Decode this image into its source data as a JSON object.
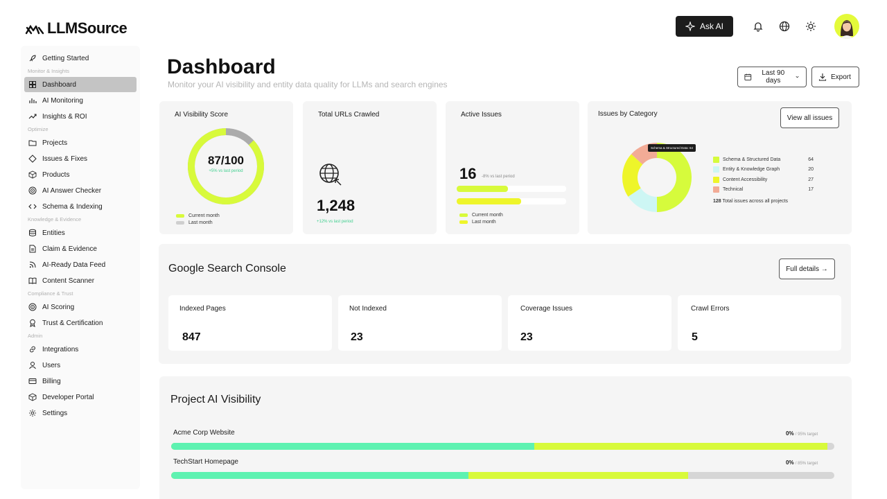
{
  "brand": {
    "name": "LLMSource"
  },
  "topbar": {
    "ask_ai_label": "Ask AI"
  },
  "sidebar": {
    "items": [
      {
        "type": "item",
        "label": "Getting Started",
        "icon": "rocket-icon"
      },
      {
        "type": "section",
        "label": "Monitor & Insights"
      },
      {
        "type": "item",
        "label": "Dashboard",
        "icon": "dashboard-icon",
        "active": true
      },
      {
        "type": "item",
        "label": "AI Monitoring",
        "icon": "bar-chart-icon"
      },
      {
        "type": "item",
        "label": "Insights & ROI",
        "icon": "trend-icon"
      },
      {
        "type": "section",
        "label": "Optimize"
      },
      {
        "type": "item",
        "label": "Projects",
        "icon": "folder-icon"
      },
      {
        "type": "item",
        "label": "Issues & Fixes",
        "icon": "diamond-icon"
      },
      {
        "type": "item",
        "label": "Products",
        "icon": "box-icon"
      },
      {
        "type": "item",
        "label": "AI Answer Checker",
        "icon": "target-icon"
      },
      {
        "type": "item",
        "label": "Schema & Indexing",
        "icon": "code-icon"
      },
      {
        "type": "section",
        "label": "Knowledge & Evidence"
      },
      {
        "type": "item",
        "label": "Entities",
        "icon": "database-icon"
      },
      {
        "type": "item",
        "label": "Claim & Evidence",
        "icon": "document-icon"
      },
      {
        "type": "item",
        "label": "AI-Ready Data Feed",
        "icon": "rss-icon"
      },
      {
        "type": "item",
        "label": "Content Scanner",
        "icon": "book-icon"
      },
      {
        "type": "section",
        "label": "Compliance & Trust"
      },
      {
        "type": "item",
        "label": "AI Scoring",
        "icon": "target-icon"
      },
      {
        "type": "item",
        "label": "Trust & Certification",
        "icon": "award-icon"
      },
      {
        "type": "section",
        "label": "Admin"
      },
      {
        "type": "item",
        "label": "Integrations",
        "icon": "link-icon"
      },
      {
        "type": "item",
        "label": "Users",
        "icon": "user-icon"
      },
      {
        "type": "item",
        "label": "Billing",
        "icon": "card-icon"
      },
      {
        "type": "item",
        "label": "Developer Portal",
        "icon": "box-icon"
      },
      {
        "type": "item",
        "label": "Settings",
        "icon": "gear-icon"
      }
    ]
  },
  "header": {
    "title": "Dashboard",
    "subtitle": "Monitor your AI visibility and entity data quality for LLMs and search engines",
    "range_label": "Last 90 days",
    "export_label": "Export"
  },
  "visibility_card": {
    "title": "AI Visibility Score",
    "score": "87/100",
    "score_value": 87,
    "delta": "+5% vs last period",
    "legend": [
      "Current month",
      "Last month"
    ]
  },
  "urls_card": {
    "title": "Total URLs Crawled",
    "value": "1,248",
    "delta": "+12% vs last period"
  },
  "issues_card": {
    "title": "Active Issues",
    "value": "16",
    "delta": "-8% vs last period",
    "current_fraction": 0.47,
    "last_fraction": 0.59,
    "legend": [
      "Current month",
      "Last month"
    ]
  },
  "category_card": {
    "title": "Issues by Category",
    "view_all_label": "View all issues",
    "tooltip": "Schema & Structured Data: 64",
    "categories": [
      {
        "name": "Schema & Structured Data",
        "value": 64,
        "color": "#d6fb3c"
      },
      {
        "name": "Entity & Knowledge Graph",
        "value": 20,
        "color": "#cdf6f4"
      },
      {
        "name": "Content Accessibility",
        "value": 27,
        "color": "#eef52a"
      },
      {
        "name": "Technical",
        "value": 17,
        "color": "#f2ab96"
      }
    ],
    "total_value": "128",
    "total_label": "Total issues across all projects"
  },
  "gsc": {
    "title": "Google Search Console",
    "details_label": "Full details →",
    "stats": [
      {
        "label": "Indexed Pages",
        "value": "847"
      },
      {
        "label": "Not Indexed",
        "value": "23"
      },
      {
        "label": "Coverage Issues",
        "value": "23"
      },
      {
        "label": "Crawl Errors",
        "value": "5"
      }
    ]
  },
  "projects": {
    "title": "Project AI Visibility",
    "rows": [
      {
        "name": "Acme Corp Website",
        "percent": "0%",
        "target": "/ 95% target",
        "fill_a": 0.548,
        "fill_b": 0.99
      },
      {
        "name": "TechStart Homepage",
        "percent": "0%",
        "target": "/ 85% target",
        "fill_a": 0.448,
        "fill_b": 0.78
      }
    ]
  },
  "colors": {
    "accent": "#d8fa3b",
    "mint": "#5ef2b1",
    "dark": "#1c1c1c"
  }
}
